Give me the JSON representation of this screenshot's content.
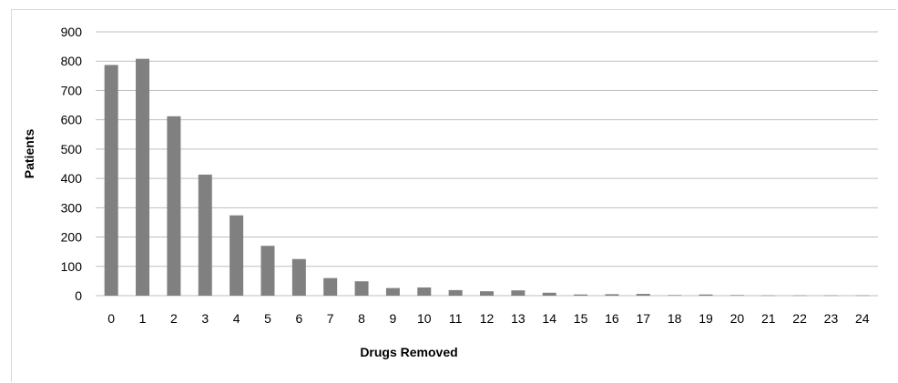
{
  "chart_data": {
    "type": "bar",
    "title": "",
    "xlabel": "Drugs Removed",
    "ylabel": "Patients",
    "categories": [
      "0",
      "1",
      "2",
      "3",
      "4",
      "5",
      "6",
      "7",
      "8",
      "9",
      "10",
      "11",
      "12",
      "13",
      "14",
      "15",
      "16",
      "17",
      "18",
      "19",
      "20",
      "21",
      "22",
      "23",
      "24"
    ],
    "values": [
      787,
      808,
      612,
      413,
      274,
      170,
      125,
      60,
      49,
      26,
      28,
      19,
      15,
      18,
      10,
      4,
      5,
      6,
      2,
      4,
      2,
      1,
      1,
      1,
      1
    ],
    "ylim": [
      0,
      900
    ],
    "yticks": [
      "0",
      "100",
      "200",
      "300",
      "400",
      "500",
      "600",
      "700",
      "800",
      "900"
    ],
    "grid": true,
    "legend": "none",
    "bar_color": "#808080",
    "grid_color": "#bfbfbf"
  }
}
